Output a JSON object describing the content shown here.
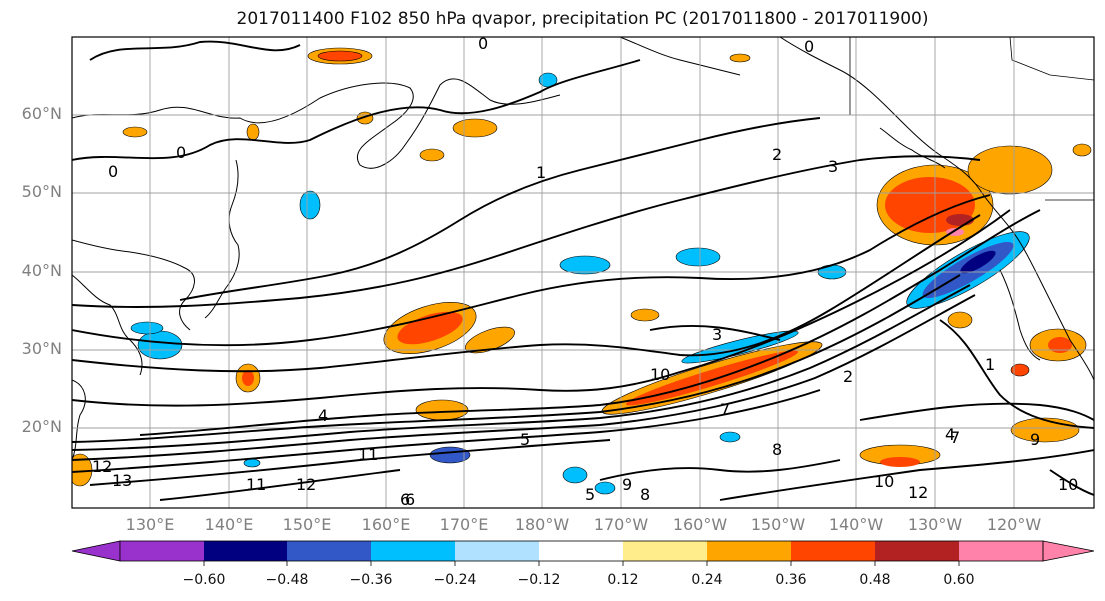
{
  "title": "2017011400 F102 850 hPa qvapor, precipitation PC (2017011800 - 2017011900)",
  "map": {
    "lat_labels": [
      "60°N",
      "50°N",
      "40°N",
      "30°N",
      "20°N"
    ],
    "lon_labels": [
      "130°E",
      "140°E",
      "150°E",
      "160°E",
      "170°E",
      "180°W",
      "170°W",
      "160°W",
      "150°W",
      "140°W",
      "130°W",
      "120°W"
    ],
    "contour_labels": [
      "0",
      "0",
      "0",
      "0",
      "1",
      "2",
      "3",
      "3",
      "2",
      "1",
      "4",
      "5",
      "6",
      "7",
      "8",
      "9",
      "10",
      "11",
      "12",
      "13",
      "12",
      "11",
      "10",
      "12",
      "10",
      "9",
      "8",
      "7",
      "6",
      "5",
      "4"
    ]
  },
  "colorbar": {
    "colors": [
      "#9932cc",
      "#000080",
      "#3158c6",
      "#00bfff",
      "#b0e2ff",
      "#ffffff",
      "#ffec8b",
      "#ffa500",
      "#ff4500",
      "#b22222",
      "#ff82ab"
    ],
    "ticks": [
      "−0.60",
      "−0.48",
      "−0.36",
      "−0.24",
      "−0.12",
      "0.12",
      "0.24",
      "0.36",
      "0.48",
      "0.60"
    ]
  }
}
